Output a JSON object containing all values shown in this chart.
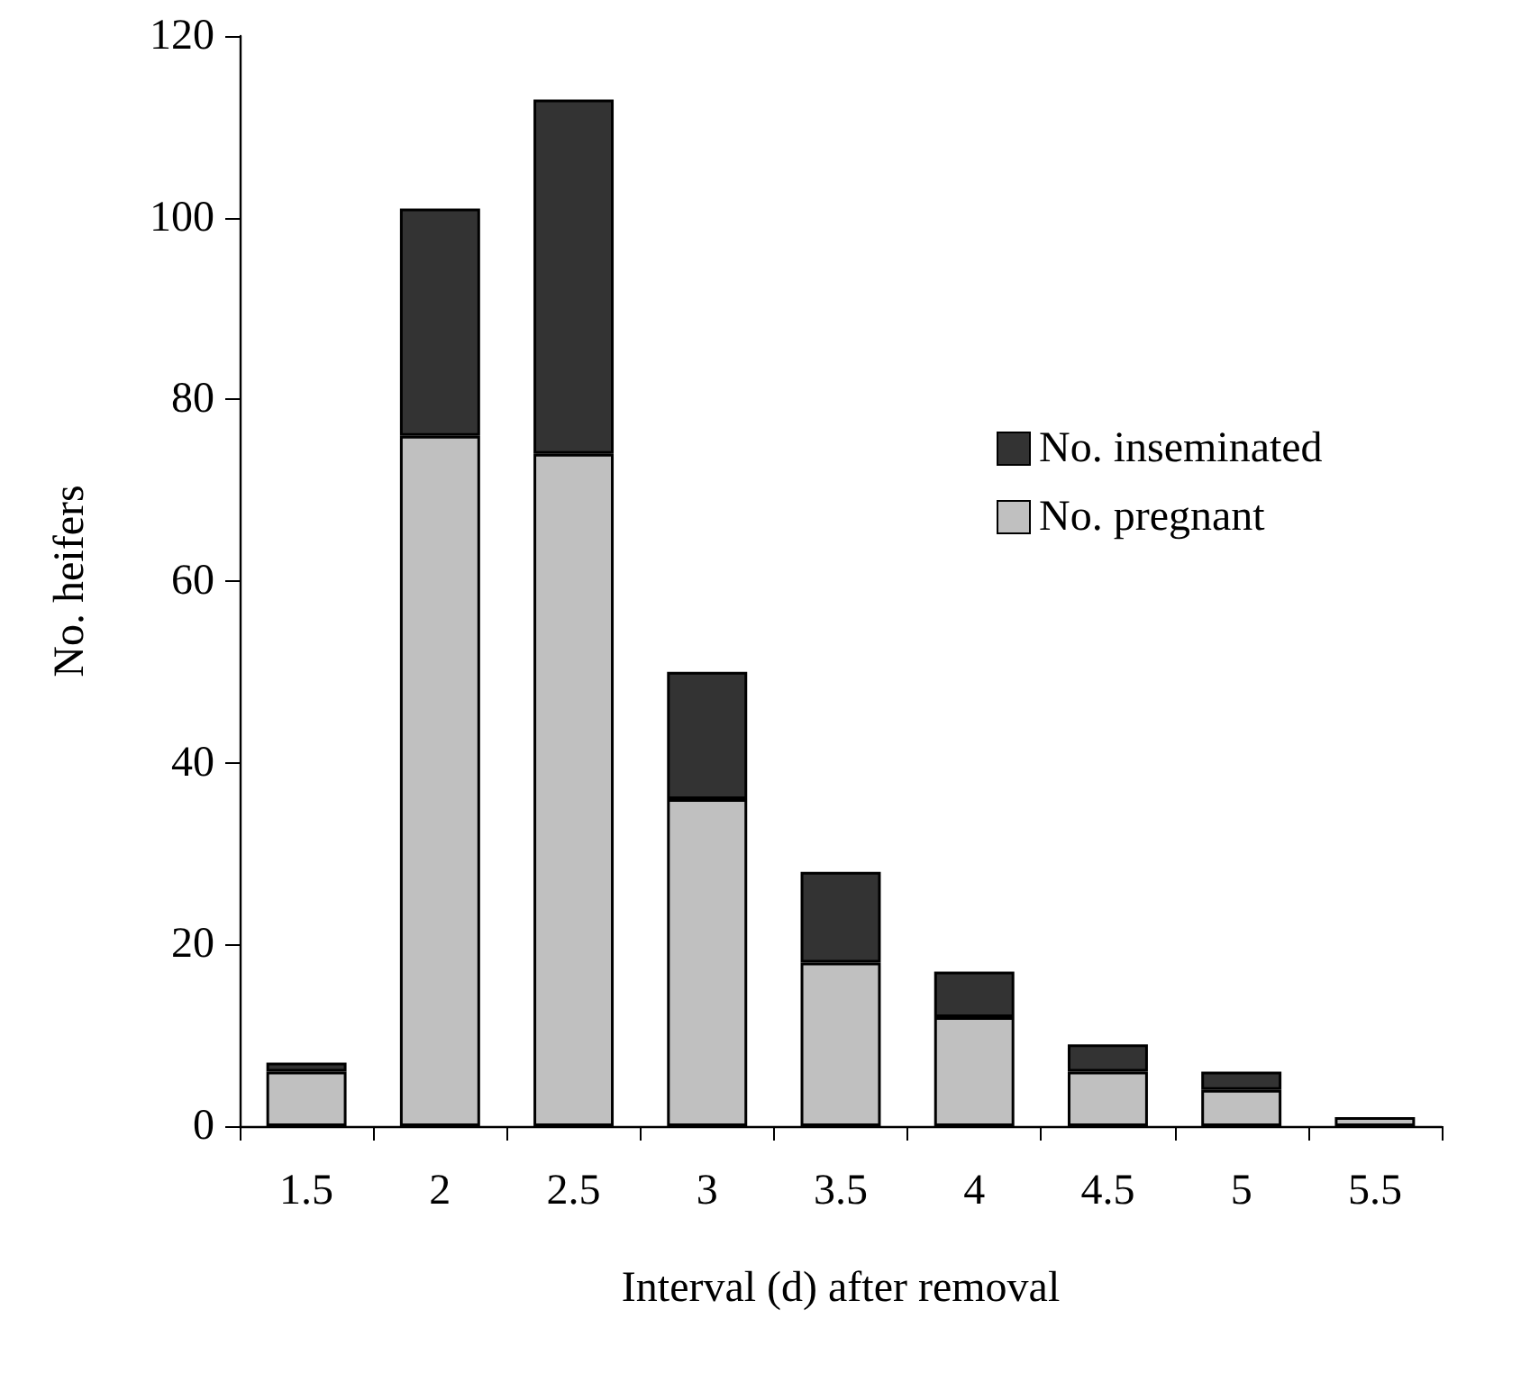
{
  "chart_data": {
    "type": "bar",
    "stacked": true,
    "xlabel": "Interval (d) after removal",
    "ylabel": "No. heifers",
    "categories": [
      "1.5",
      "2",
      "2.5",
      "3",
      "3.5",
      "4",
      "4.5",
      "5",
      "5.5"
    ],
    "series": [
      {
        "name": "No. pregnant",
        "color": "#c0c0c0",
        "values": [
          6,
          76,
          74,
          36,
          18,
          12,
          6,
          4,
          1
        ]
      },
      {
        "name": "No. inseminated",
        "color": "#333333",
        "values": [
          1,
          25,
          39,
          14,
          10,
          5,
          3,
          2,
          0
        ]
      }
    ],
    "ylim": [
      0,
      120
    ],
    "yticks": [
      0,
      20,
      40,
      60,
      80,
      100,
      120
    ],
    "grid": false,
    "legend": "right"
  }
}
